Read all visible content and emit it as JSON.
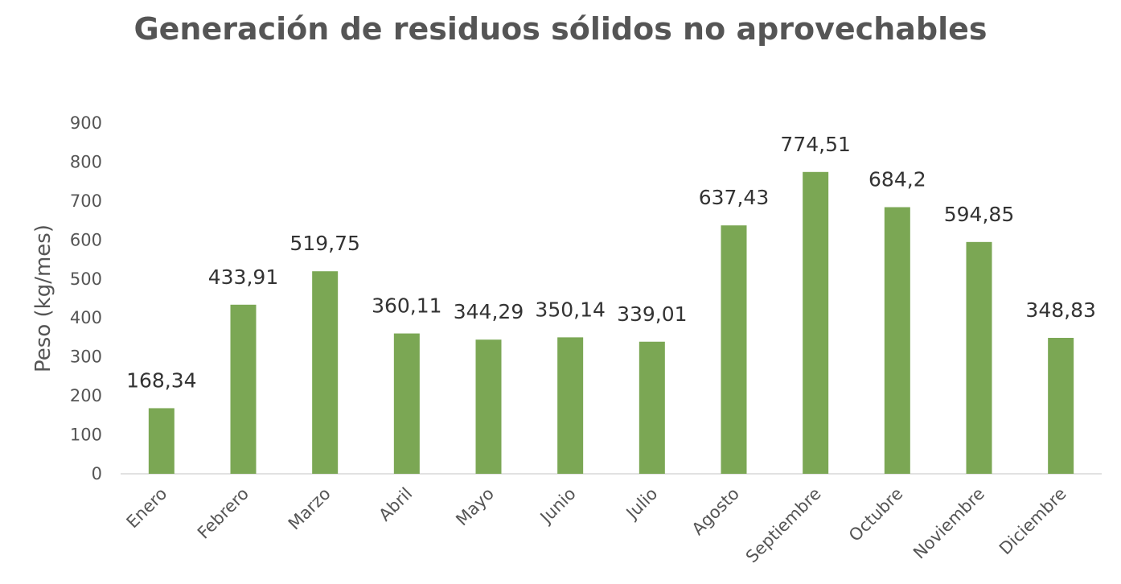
{
  "chart_data": {
    "type": "bar",
    "title": "Generación de residuos sólidos no aprovechables",
    "ylabel": "Peso (kg/mes)",
    "xlabel": "",
    "ylim": [
      0,
      900
    ],
    "yticks": [
      "0",
      "100",
      "200",
      "300",
      "400",
      "500",
      "600",
      "700",
      "800",
      "900"
    ],
    "categories": [
      "Enero",
      "Febrero",
      "Marzo",
      "Abril",
      "Mayo",
      "Junio",
      "Julio",
      "Agosto",
      "Septiembre",
      "Octubre",
      "Noviembre",
      "Diciembre"
    ],
    "values": [
      168.34,
      433.91,
      519.75,
      360.11,
      344.29,
      350.14,
      339.01,
      637.43,
      774.51,
      684.2,
      594.85,
      348.83
    ],
    "data_labels": [
      "168,34",
      "433,91",
      "519,75",
      "360,11",
      "344,29",
      "350,14",
      "339,01",
      "637,43",
      "774,51",
      "684,2",
      "594,85",
      "348,83"
    ],
    "grid": false,
    "legend": "none",
    "bar_color": "#7ba754"
  }
}
